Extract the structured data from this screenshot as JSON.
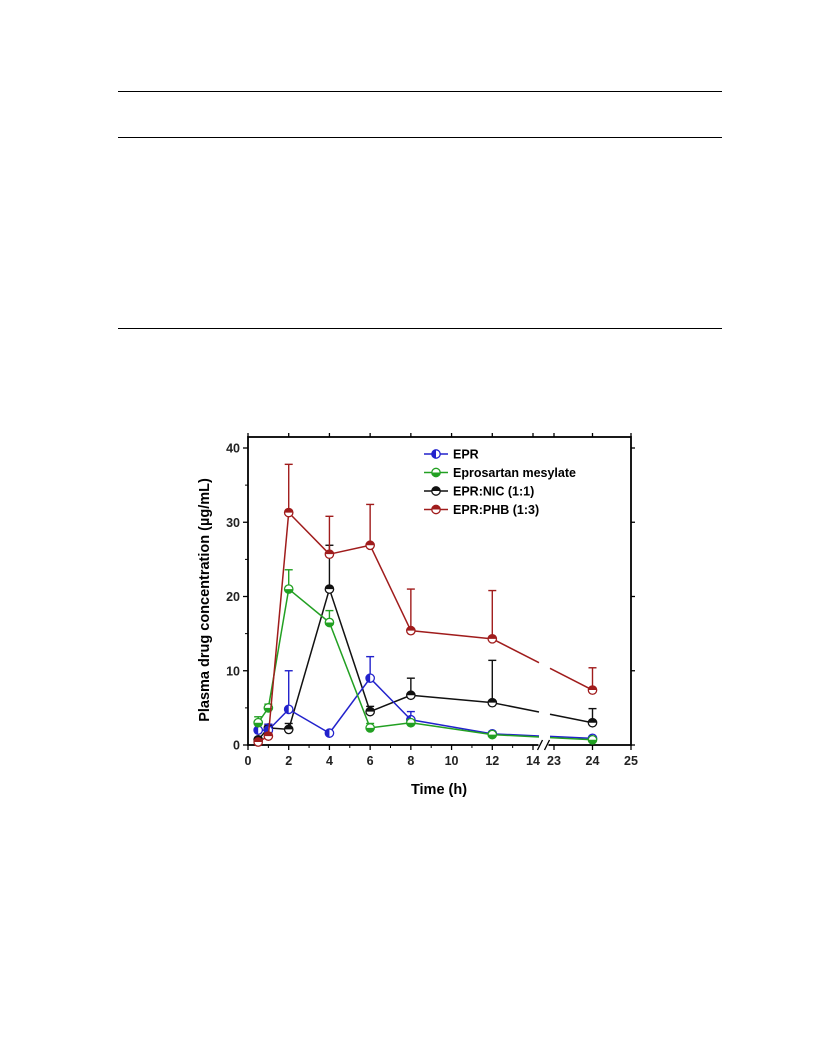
{
  "chart_data": {
    "type": "line",
    "xlabel": "Time (h)",
    "ylabel": "Plasma drug concentration (µg/mL)",
    "xlim": [
      0,
      25
    ],
    "ylim": [
      0,
      40
    ],
    "x_ticks": [
      0,
      2,
      4,
      6,
      8,
      10,
      12,
      14,
      23,
      24,
      25
    ],
    "x_tick_labels": [
      "0",
      "2",
      "4",
      "6",
      "8",
      "10",
      "12",
      "14",
      "23",
      "24",
      "25"
    ],
    "y_ticks": [
      0,
      10,
      20,
      30,
      40
    ],
    "y_tick_labels": [
      "0",
      "10",
      "20",
      "30",
      "40"
    ],
    "axis_break": "between 14 and 23 h",
    "legend_position": "top-right",
    "grid": false,
    "series": [
      {
        "name": "EPR",
        "color": "#2222cc",
        "x": [
          0.5,
          1,
          2,
          4,
          6,
          8,
          12,
          24
        ],
        "y": [
          2.0,
          2.0,
          4.8,
          1.6,
          9.0,
          3.4,
          1.5,
          0.9
        ],
        "err": [
          1.0,
          0.8,
          5.2,
          0,
          2.9,
          1.1,
          0.3,
          0.2
        ]
      },
      {
        "name": "Eprosartan mesylate",
        "color": "#22a022",
        "x": [
          0.5,
          1,
          2,
          4,
          6,
          8,
          12,
          24
        ],
        "y": [
          3.0,
          5.0,
          21.0,
          16.5,
          2.3,
          3.0,
          1.4,
          0.7
        ],
        "err": [
          0.8,
          0.5,
          2.6,
          1.6,
          0.6,
          0.4,
          0.3,
          0.2
        ]
      },
      {
        "name": "EPR:NIC (1:1)",
        "color": "#111111",
        "x": [
          0.5,
          1,
          2,
          4,
          6,
          8,
          12,
          24
        ],
        "y": [
          0.7,
          2.3,
          2.1,
          21.0,
          4.5,
          6.7,
          5.7,
          3.0
        ],
        "err": [
          0.3,
          0.5,
          0.8,
          5.9,
          0.7,
          2.3,
          5.7,
          1.9
        ]
      },
      {
        "name": "EPR:PHB (1:3)",
        "color": "#a01c1c",
        "x": [
          0.5,
          1,
          2,
          4,
          6,
          8,
          12,
          24
        ],
        "y": [
          0.4,
          1.2,
          31.3,
          25.7,
          26.9,
          15.4,
          14.3,
          7.4
        ],
        "err": [
          0.3,
          0.4,
          6.5,
          5.1,
          5.5,
          5.6,
          6.5,
          3.0
        ]
      }
    ]
  }
}
